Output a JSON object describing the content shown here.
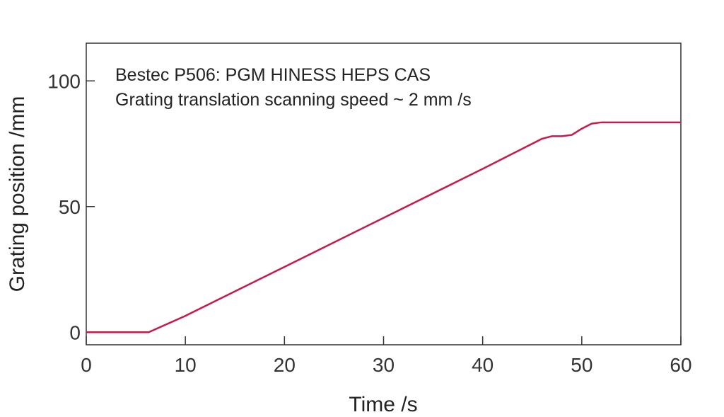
{
  "chart_data": {
    "type": "line",
    "xlabel": "Time /s",
    "ylabel": "Grating position /mm",
    "xlim": [
      0,
      60
    ],
    "ylim": [
      -5,
      115
    ],
    "xticks": [
      0,
      10,
      20,
      30,
      40,
      50,
      60
    ],
    "yticks": [
      0,
      50,
      100
    ],
    "grid": false,
    "annotations": [
      "Bestec P506: PGM HINESS HEPS CAS",
      "Grating translation scanning speed ~ 2 mm /s"
    ],
    "series_color": "#c8194a",
    "series": [
      {
        "x": [
          0,
          6.3,
          10,
          20,
          30,
          40,
          45,
          46,
          47,
          48,
          49,
          50,
          51,
          52,
          53,
          60
        ],
        "y": [
          0,
          0,
          6.5,
          26,
          45.5,
          65,
          75,
          77,
          78,
          78,
          78.5,
          81,
          83,
          83.5,
          83.5,
          83.5
        ]
      }
    ]
  }
}
